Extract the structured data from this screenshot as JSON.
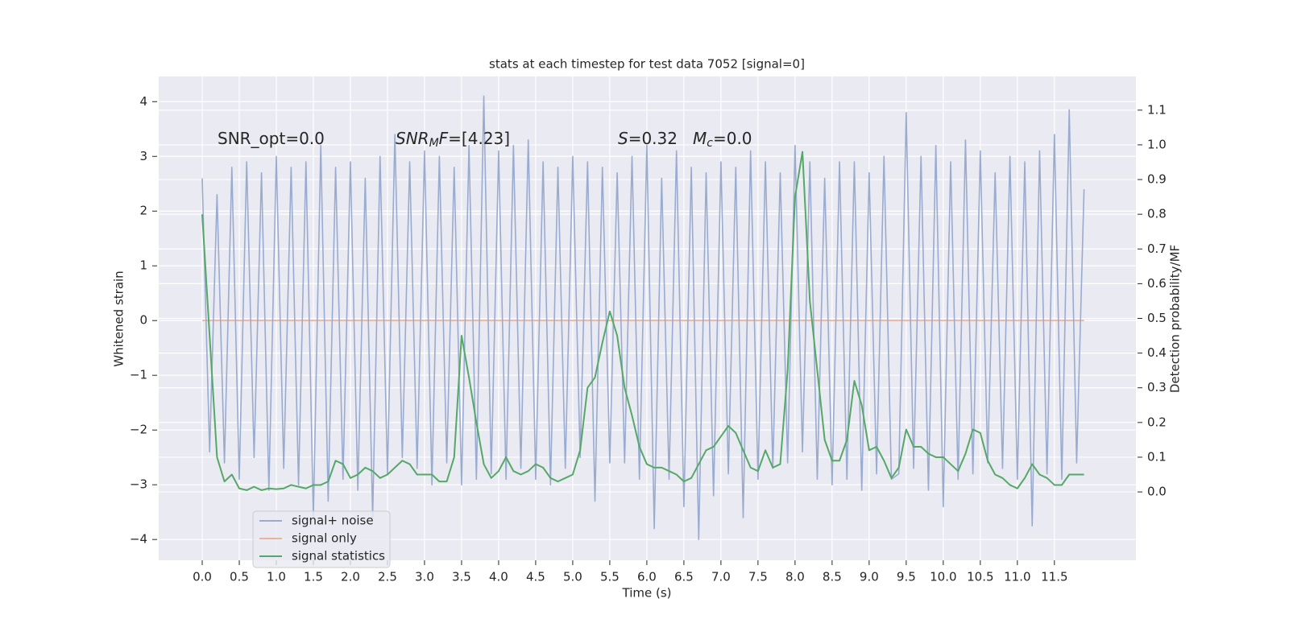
{
  "chart_data": {
    "type": "line",
    "title": "stats at each timestep for test data 7052 [signal=0]",
    "xlabel": "Time (s)",
    "ylabel": "Whitened strain",
    "y2label": "Detection probability/MF",
    "annotations": [
      {
        "parts": [
          {
            "text": "SNR_opt=0.0"
          }
        ]
      },
      {
        "parts": [
          {
            "text": "SNR",
            "style": "italic"
          },
          {
            "text": "M",
            "style": "italic-sub"
          },
          {
            "text": "F",
            "style": "italic"
          },
          {
            "text": "=[4.23]"
          }
        ]
      },
      {
        "parts": [
          {
            "text": "S",
            "style": "italic"
          },
          {
            "text": "=0.32"
          }
        ]
      },
      {
        "parts": [
          {
            "text": "M",
            "style": "italic"
          },
          {
            "text": "c",
            "style": "italic-sub"
          },
          {
            "text": "=0.0"
          }
        ]
      }
    ],
    "x": [
      0.0,
      0.1,
      0.2,
      0.3,
      0.4,
      0.5,
      0.6,
      0.7,
      0.8,
      0.9,
      1.0,
      1.1,
      1.2,
      1.3,
      1.4,
      1.5,
      1.6,
      1.7,
      1.8,
      1.9,
      2.0,
      2.1,
      2.2,
      2.3,
      2.4,
      2.5,
      2.6,
      2.7,
      2.8,
      2.9,
      3.0,
      3.1,
      3.2,
      3.3,
      3.4,
      3.5,
      3.6,
      3.7,
      3.8,
      3.9,
      4.0,
      4.1,
      4.2,
      4.3,
      4.4,
      4.5,
      4.6,
      4.7,
      4.8,
      4.9,
      5.0,
      5.1,
      5.2,
      5.3,
      5.4,
      5.5,
      5.6,
      5.7,
      5.8,
      5.9,
      6.0,
      6.1,
      6.2,
      6.3,
      6.4,
      6.5,
      6.6,
      6.7,
      6.8,
      6.9,
      7.0,
      7.1,
      7.2,
      7.3,
      7.4,
      7.5,
      7.6,
      7.7,
      7.8,
      7.9,
      8.0,
      8.1,
      8.2,
      8.3,
      8.4,
      8.5,
      8.6,
      8.7,
      8.8,
      8.9,
      9.0,
      9.1,
      9.2,
      9.3,
      9.4,
      9.5,
      9.6,
      9.7,
      9.8,
      9.9,
      10.0,
      10.1,
      10.2,
      10.3,
      10.4,
      10.5,
      10.6,
      10.7,
      10.8,
      10.9,
      11.0,
      11.1,
      11.2,
      11.3,
      11.4,
      11.5,
      11.6,
      11.7,
      11.8,
      11.9
    ],
    "series": [
      {
        "name": "signal only",
        "color": "#e8b39c",
        "x": [
          0.0,
          11.9
        ],
        "values": [
          0,
          0
        ]
      },
      {
        "name": "signal+ noise",
        "color": "#9aabd0",
        "values": [
          2.6,
          -2.4,
          2.3,
          -2.6,
          2.8,
          -2.9,
          2.9,
          -2.5,
          2.7,
          -3.1,
          3.0,
          -2.7,
          2.8,
          -3.0,
          2.9,
          -3.6,
          3.2,
          -3.3,
          2.8,
          -2.9,
          2.9,
          -3.1,
          2.6,
          -3.6,
          3.0,
          -2.8,
          3.4,
          -2.5,
          2.9,
          -2.7,
          3.1,
          -3.0,
          3.0,
          -2.6,
          2.8,
          -3.0,
          3.2,
          -2.9,
          4.1,
          -2.8,
          3.1,
          -2.9,
          3.2,
          -2.7,
          3.3,
          -2.9,
          2.9,
          -3.0,
          2.8,
          -2.7,
          3.0,
          -2.5,
          2.9,
          -3.3,
          2.8,
          -2.6,
          2.7,
          -2.6,
          3.0,
          -2.9,
          3.2,
          -3.8,
          2.6,
          -2.9,
          3.1,
          -3.4,
          2.8,
          -4.0,
          2.7,
          -3.2,
          2.9,
          -2.8,
          2.8,
          -3.6,
          3.1,
          -2.9,
          2.9,
          -2.7,
          2.7,
          -2.6,
          3.2,
          -2.4,
          2.9,
          -2.9,
          2.6,
          -3.0,
          2.9,
          -2.9,
          2.9,
          -3.1,
          2.7,
          -2.8,
          3.0,
          -2.9,
          -2.8,
          3.8,
          -2.7,
          3.0,
          -3.1,
          3.2,
          -3.4,
          2.9,
          -2.9,
          3.3,
          -2.8,
          3.1,
          -2.6,
          2.7,
          -2.7,
          3.0,
          -2.9,
          2.9,
          -3.75,
          3.1,
          -2.8,
          3.4,
          -2.9,
          3.85,
          -2.6,
          2.4
        ]
      },
      {
        "name": "signal statistics",
        "color": "#55a868",
        "axis": "y2",
        "values": [
          0.8,
          0.45,
          0.1,
          0.03,
          0.05,
          0.01,
          0.005,
          0.015,
          0.005,
          0.01,
          0.008,
          0.01,
          0.02,
          0.015,
          0.01,
          0.02,
          0.02,
          0.03,
          0.09,
          0.08,
          0.04,
          0.05,
          0.07,
          0.06,
          0.04,
          0.05,
          0.07,
          0.09,
          0.08,
          0.05,
          0.05,
          0.05,
          0.03,
          0.03,
          0.1,
          0.45,
          0.33,
          0.2,
          0.08,
          0.04,
          0.06,
          0.1,
          0.06,
          0.05,
          0.06,
          0.08,
          0.07,
          0.04,
          0.03,
          0.04,
          0.05,
          0.12,
          0.3,
          0.33,
          0.43,
          0.52,
          0.45,
          0.3,
          0.22,
          0.13,
          0.08,
          0.07,
          0.07,
          0.06,
          0.05,
          0.03,
          0.04,
          0.08,
          0.12,
          0.13,
          0.16,
          0.19,
          0.17,
          0.12,
          0.07,
          0.06,
          0.12,
          0.07,
          0.08,
          0.35,
          0.85,
          0.98,
          0.55,
          0.35,
          0.15,
          0.09,
          0.09,
          0.15,
          0.32,
          0.25,
          0.12,
          0.13,
          0.09,
          0.04,
          0.07,
          0.18,
          0.13,
          0.13,
          0.11,
          0.1,
          0.1,
          0.08,
          0.06,
          0.11,
          0.18,
          0.17,
          0.09,
          0.05,
          0.04,
          0.02,
          0.01,
          0.04,
          0.08,
          0.05,
          0.04,
          0.02,
          0.02,
          0.05,
          0.05,
          0.05
        ]
      }
    ],
    "legend_order": [
      1,
      0,
      2
    ],
    "legend": "lower left",
    "grid": true,
    "xlim": [
      -0.587,
      12.6
    ],
    "xticks": [
      {
        "value": 0,
        "label": "0.0"
      },
      0.5,
      {
        "value": 1,
        "label": "1.0"
      },
      1.5,
      {
        "value": 2,
        "label": "2.0"
      },
      2.5,
      {
        "value": 3,
        "label": "3.0"
      },
      3.5,
      {
        "value": 4,
        "label": "4.0"
      },
      4.5,
      {
        "value": 5,
        "label": "5.0"
      },
      5.5,
      {
        "value": 6,
        "label": "6.0"
      },
      6.5,
      {
        "value": 7,
        "label": "7.0"
      },
      7.5,
      {
        "value": 8,
        "label": "8.0"
      },
      8.5,
      {
        "value": 9,
        "label": "9.0"
      },
      9.5,
      {
        "value": 10,
        "label": "10.0"
      },
      10.5,
      {
        "value": 11,
        "label": "11.0"
      },
      11.5
    ],
    "ylim": [
      -4.38,
      4.46
    ],
    "yticks": [
      {
        "value": -4,
        "label": "−4"
      },
      {
        "value": -3,
        "label": "−3"
      },
      {
        "value": -2,
        "label": "−2"
      },
      {
        "value": -1,
        "label": "−1"
      },
      0,
      1,
      2,
      3,
      4
    ],
    "y2lim": [
      -0.197,
      1.197
    ],
    "y2ticks": [
      {
        "value": 0,
        "label": "0.0"
      },
      0.1,
      0.2,
      0.3,
      0.4,
      0.5,
      0.6,
      0.7,
      0.8,
      0.9,
      {
        "value": 1,
        "label": "1.0"
      },
      1.1
    ]
  }
}
